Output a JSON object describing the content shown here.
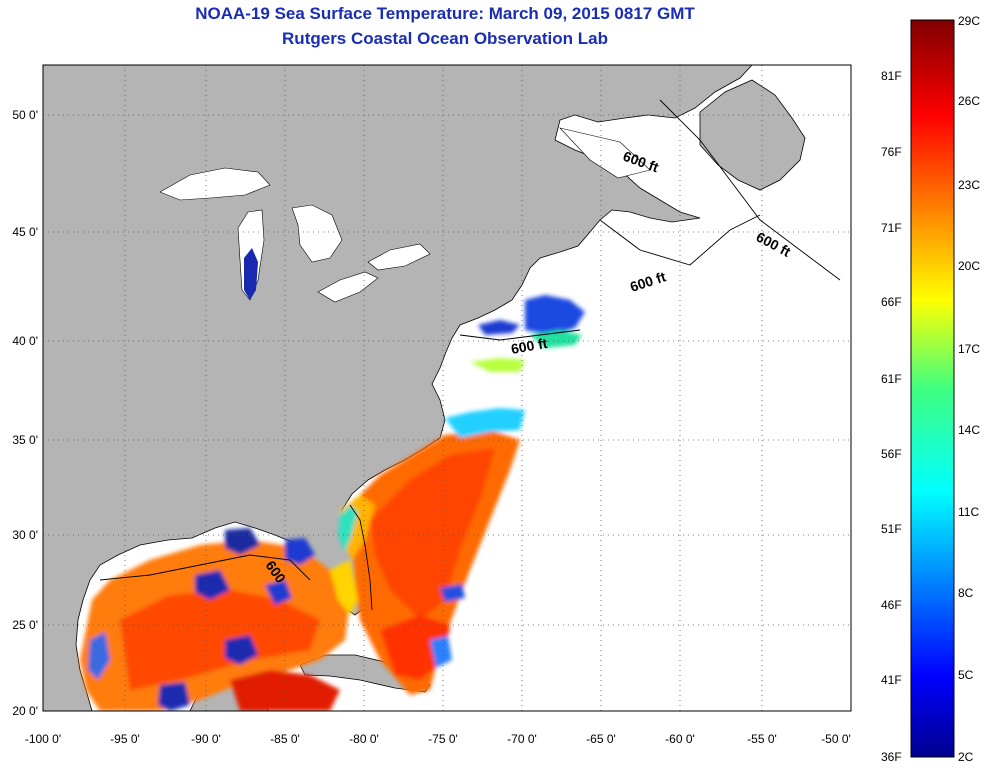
{
  "header": {
    "title": "NOAA-19 Sea Surface Temperature:  March 09, 2015 0817 GMT",
    "subtitle": "Rutgers Coastal Ocean Observation Lab"
  },
  "axes": {
    "x_ticks": [
      "-100 0'",
      "-95 0'",
      "-90 0'",
      "-85 0'",
      "-80 0'",
      "-75 0'",
      "-70 0'",
      "-65 0'",
      "-60 0'",
      "-55 0'",
      "-50 0'"
    ],
    "y_ticks": [
      "50 0'",
      "45 0'",
      "40 0'",
      "35 0'",
      "30 0'",
      "25 0'",
      "20 0'"
    ]
  },
  "contour_labels": [
    "600 ft",
    "600 ft",
    "600 ft",
    "600 ft",
    "600"
  ],
  "colorbar": {
    "fahrenheit": [
      "81F",
      "76F",
      "71F",
      "66F",
      "61F",
      "56F",
      "51F",
      "46F",
      "41F",
      "36F"
    ],
    "celsius": [
      "29C",
      "26C",
      "23C",
      "20C",
      "17C",
      "14C",
      "11C",
      "8C",
      "5C",
      "2C"
    ]
  },
  "colors": {
    "land": "#b4b4b4",
    "no_data": "#ffffff",
    "title": "#1a2db5"
  }
}
